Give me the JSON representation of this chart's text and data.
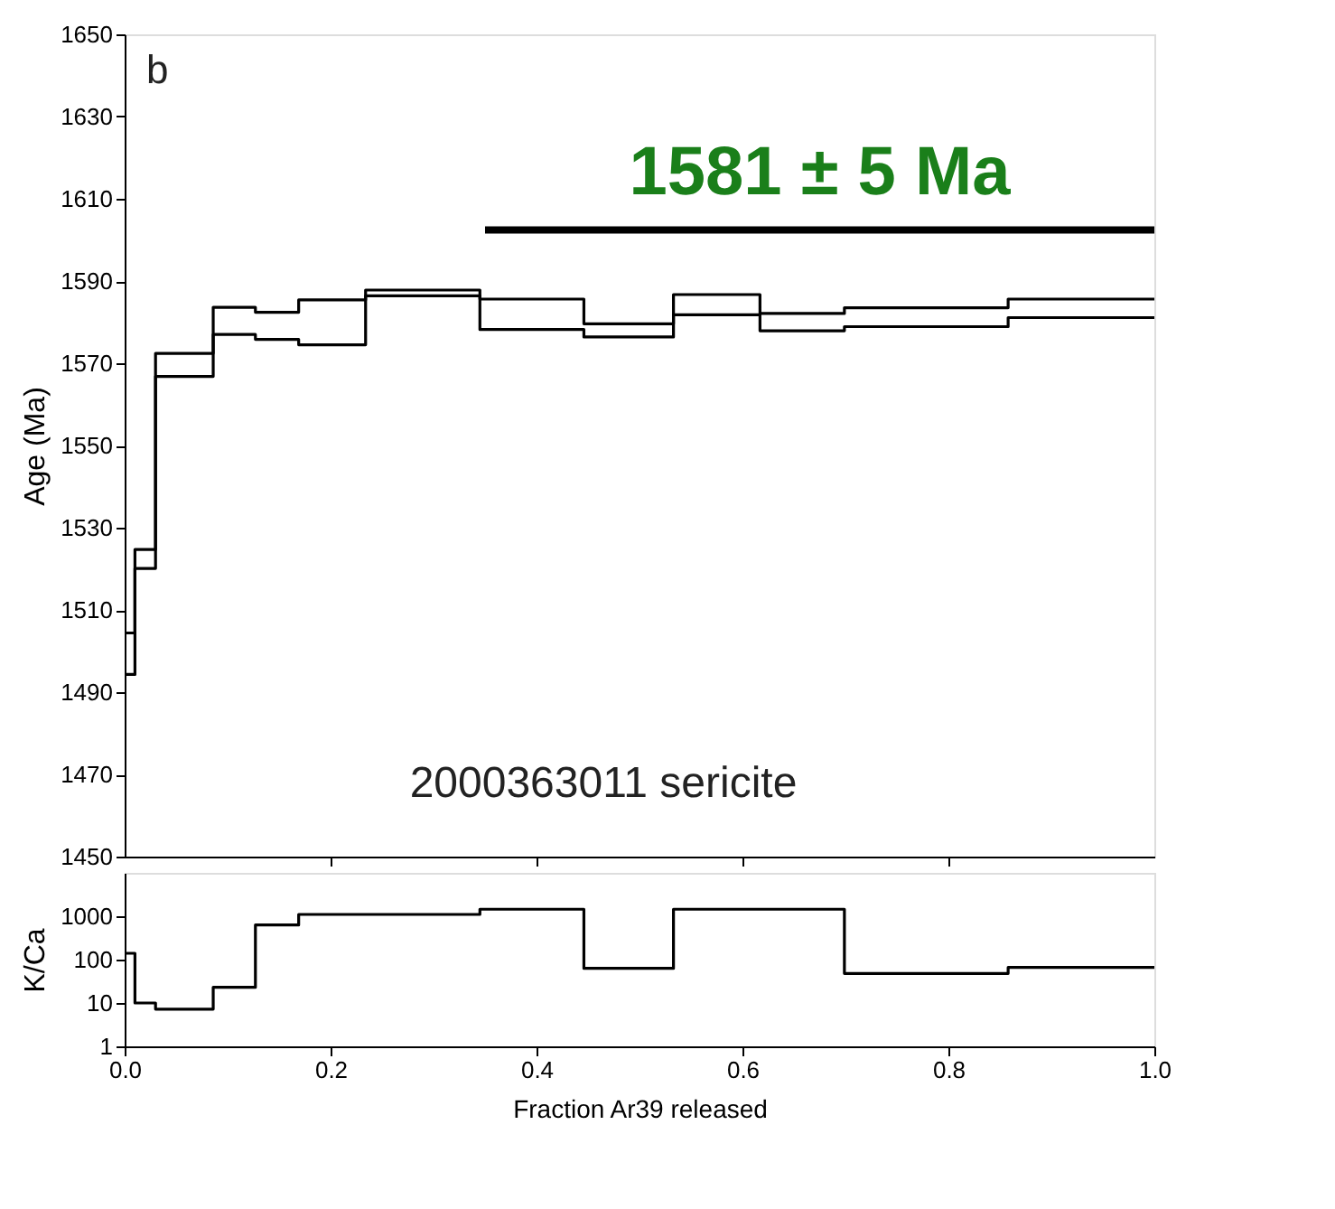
{
  "chart_data": [
    {
      "type": "step",
      "ylabel": "Age (Ma)",
      "x": [
        0,
        0.01,
        0.03,
        0.086,
        0.127,
        0.169,
        0.234,
        0.345,
        0.446,
        0.533,
        0.617,
        0.699,
        0.858,
        1.0
      ],
      "series": [
        {
          "color": "#000000",
          "values": [
            1504.4,
            1524.7,
            1572.4,
            1583.6,
            1582.4,
            1585.4,
            1587.8,
            1585.6,
            1579.6,
            1586.7,
            1582.1,
            1583.5,
            1585.6,
            1585.6
          ]
        },
        {
          "color": "#000000",
          "values": [
            1494.3,
            1520.1,
            1566.8,
            1577.0,
            1575.8,
            1574.5,
            1586.4,
            1578.2,
            1576.4,
            1581.8,
            1577.9,
            1578.9,
            1581.1,
            1581.1
          ]
        },
        {
          "type": "line",
          "color": "#000000",
          "x": [
            0.35,
            1.0
          ],
          "values": [
            1602.4,
            1602.4
          ]
        }
      ],
      "xlim": [
        0,
        1
      ],
      "xticks": [
        0.2,
        0.4,
        0.6,
        0.8
      ],
      "ylim": [
        1450,
        1650
      ],
      "yticks": [
        1450,
        1470,
        1490,
        1510,
        1530,
        1550,
        1570,
        1590,
        1610,
        1630,
        1650
      ],
      "tick_labels": "y",
      "annotations": [
        "b",
        {
          "text": "1581 ± 5 Ma",
          "x": 0.675,
          "y": 1602.4
        },
        "2000363011 sericite"
      ]
    },
    {
      "type": "step",
      "ylabel": "K/Ca",
      "xlabel": "Fraction Ar39 released",
      "log": true,
      "x": [
        0,
        0.01,
        0.03,
        0.086,
        0.127,
        0.169,
        0.234,
        0.345,
        0.446,
        0.533,
        0.617,
        0.699,
        0.858,
        1.0
      ],
      "series": [
        {
          "color": "#000000",
          "values": [
            140,
            10,
            7.2,
            23,
            630,
            1100,
            1100,
            1450,
            63,
            1450,
            1450,
            48,
            66,
            66
          ]
        }
      ],
      "xlim": [
        0,
        1
      ],
      "xticks": [
        {
          "value": 0,
          "label": "0.0"
        },
        0.2,
        0.4,
        0.6,
        0.8,
        {
          "value": 1,
          "label": "1.0"
        }
      ],
      "ylim": [
        1,
        10000
      ],
      "yticks": [
        1,
        10,
        100,
        1000
      ]
    }
  ]
}
